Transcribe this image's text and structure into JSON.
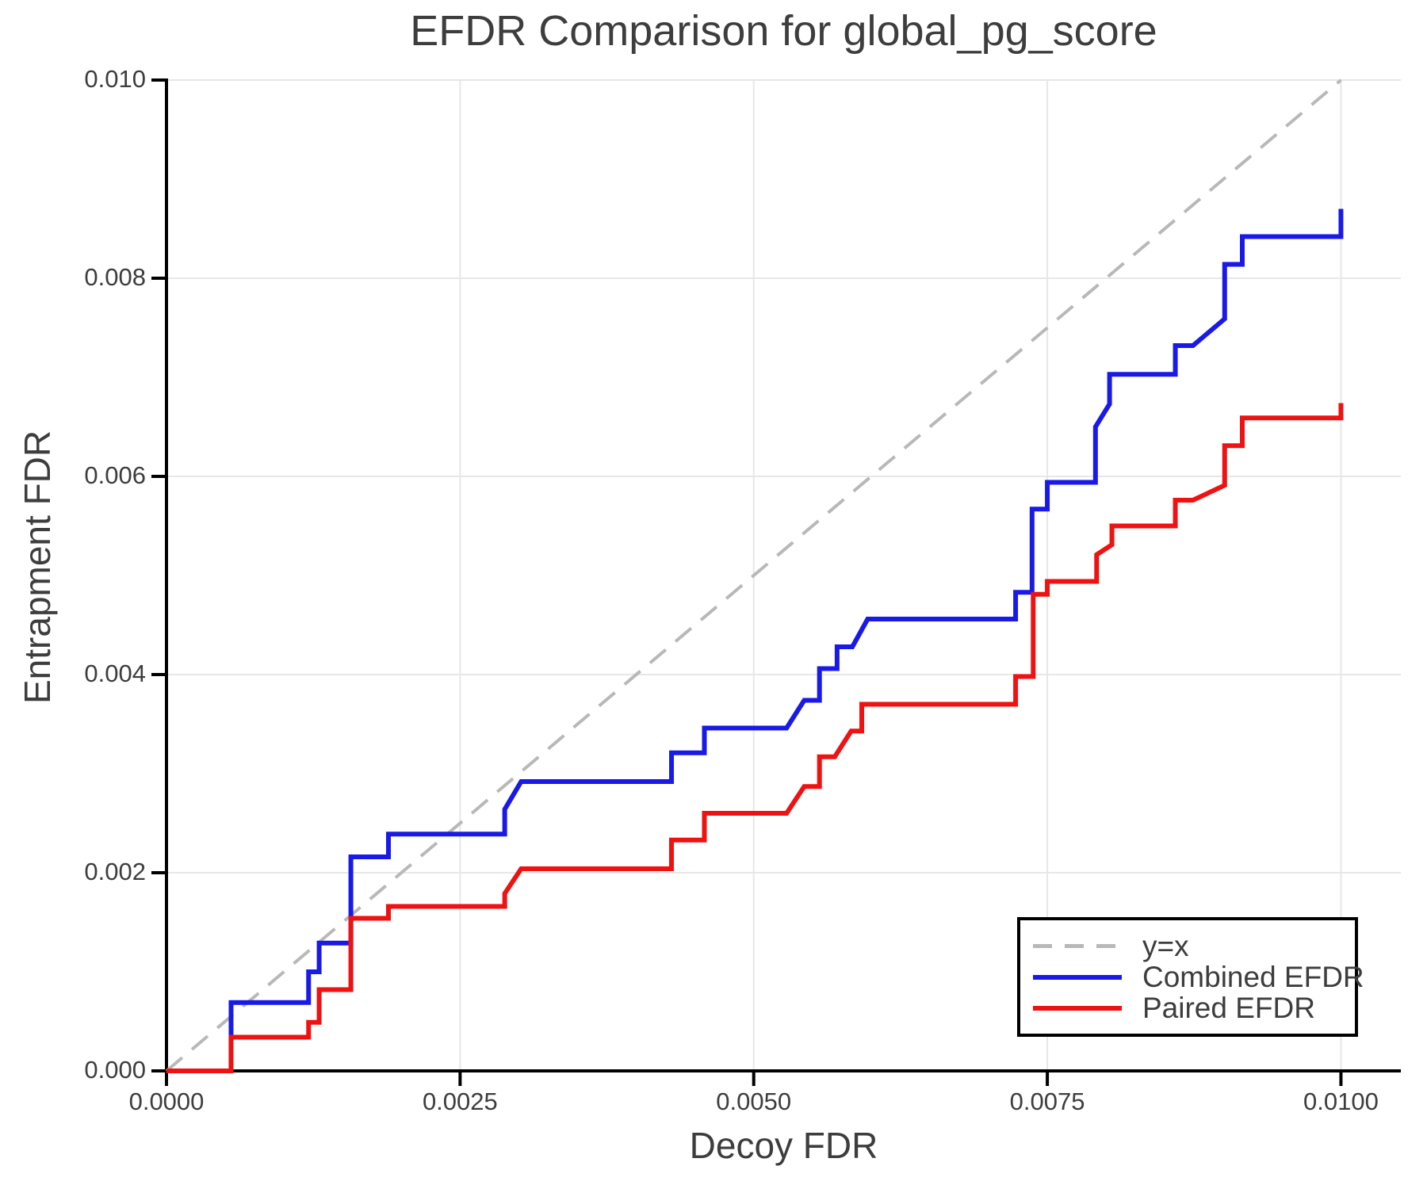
{
  "chart_data": {
    "type": "line",
    "subtype": "step-curves",
    "title": "EFDR Comparison for global_pg_score",
    "xlabel": "Decoy FDR",
    "ylabel": "Entrapment FDR",
    "xlim": [
      0.0,
      0.01051
    ],
    "ylim": [
      0.0,
      0.01
    ],
    "grid": true,
    "legend_position": "lower right",
    "x_ticks": {
      "values": [
        0.0,
        0.0025,
        0.005,
        0.0075,
        0.01
      ],
      "labels": [
        "0.0000",
        "0.0025",
        "0.0050",
        "0.0075",
        "0.0100"
      ]
    },
    "y_ticks": {
      "values": [
        0.0,
        0.002,
        0.004,
        0.006,
        0.008,
        0.01
      ],
      "labels": [
        "0.000",
        "0.002",
        "0.004",
        "0.006",
        "0.008",
        "0.010"
      ]
    },
    "colors": {
      "reference": "#b8b8b8",
      "combined": "#1a1ae8",
      "paired": "#ef1212",
      "grid": "#e7e7e7",
      "spine": "#000000",
      "text": "#3d3d3d"
    },
    "legend": [
      {
        "label": "y=x",
        "style": "dashed",
        "color": "#b8b8b8"
      },
      {
        "label": "Combined EFDR",
        "style": "solid",
        "color": "#1a1ae8"
      },
      {
        "label": "Paired EFDR",
        "style": "solid",
        "color": "#ef1212"
      }
    ],
    "reference_line": {
      "name": "y=x",
      "points": [
        [
          0.0,
          0.0
        ],
        [
          0.01,
          0.01
        ]
      ]
    },
    "series": [
      {
        "name": "Combined EFDR",
        "color": "#1a1ae8",
        "points": [
          [
            0.0,
            0.0
          ],
          [
            0.00055,
            0.0
          ],
          [
            0.00055,
            0.00069
          ],
          [
            0.00121,
            0.00069
          ],
          [
            0.00121,
            0.001
          ],
          [
            0.0013,
            0.001
          ],
          [
            0.0013,
            0.00129
          ],
          [
            0.00157,
            0.00129
          ],
          [
            0.00157,
            0.00216
          ],
          [
            0.00189,
            0.00216
          ],
          [
            0.00189,
            0.00239
          ],
          [
            0.00288,
            0.00239
          ],
          [
            0.00288,
            0.00264
          ],
          [
            0.00302,
            0.00292
          ],
          [
            0.0043,
            0.00292
          ],
          [
            0.0043,
            0.00321
          ],
          [
            0.00458,
            0.00321
          ],
          [
            0.00458,
            0.00346
          ],
          [
            0.00528,
            0.00346
          ],
          [
            0.00543,
            0.00374
          ],
          [
            0.00556,
            0.00374
          ],
          [
            0.00556,
            0.00406
          ],
          [
            0.00571,
            0.00406
          ],
          [
            0.00571,
            0.00428
          ],
          [
            0.00584,
            0.00428
          ],
          [
            0.00597,
            0.00456
          ],
          [
            0.00723,
            0.00456
          ],
          [
            0.00723,
            0.00483
          ],
          [
            0.00737,
            0.00483
          ],
          [
            0.00737,
            0.00567
          ],
          [
            0.0075,
            0.00567
          ],
          [
            0.0075,
            0.00594
          ],
          [
            0.00791,
            0.00594
          ],
          [
            0.00791,
            0.0065
          ],
          [
            0.00803,
            0.00673
          ],
          [
            0.00803,
            0.00703
          ],
          [
            0.00859,
            0.00703
          ],
          [
            0.00859,
            0.00732
          ],
          [
            0.00874,
            0.00732
          ],
          [
            0.00886,
            0.00744
          ],
          [
            0.00901,
            0.00759
          ],
          [
            0.00901,
            0.00814
          ],
          [
            0.00916,
            0.00814
          ],
          [
            0.00916,
            0.00842
          ],
          [
            0.01,
            0.00842
          ],
          [
            0.01,
            0.0087
          ]
        ]
      },
      {
        "name": "Paired EFDR",
        "color": "#ef1212",
        "points": [
          [
            0.0,
            0.0
          ],
          [
            0.00055,
            0.0
          ],
          [
            0.00055,
            0.00034
          ],
          [
            0.00121,
            0.00034
          ],
          [
            0.00121,
            0.00049
          ],
          [
            0.0013,
            0.00049
          ],
          [
            0.0013,
            0.00082
          ],
          [
            0.00157,
            0.00082
          ],
          [
            0.00157,
            0.00154
          ],
          [
            0.00189,
            0.00154
          ],
          [
            0.00189,
            0.00166
          ],
          [
            0.00288,
            0.00166
          ],
          [
            0.00288,
            0.00179
          ],
          [
            0.00302,
            0.00204
          ],
          [
            0.0043,
            0.00204
          ],
          [
            0.0043,
            0.00233
          ],
          [
            0.00458,
            0.00233
          ],
          [
            0.00458,
            0.0026
          ],
          [
            0.00528,
            0.0026
          ],
          [
            0.00543,
            0.00287
          ],
          [
            0.00556,
            0.00287
          ],
          [
            0.00556,
            0.00317
          ],
          [
            0.00569,
            0.00317
          ],
          [
            0.00583,
            0.00343
          ],
          [
            0.00592,
            0.00343
          ],
          [
            0.00592,
            0.0037
          ],
          [
            0.00723,
            0.0037
          ],
          [
            0.00723,
            0.00398
          ],
          [
            0.00738,
            0.00398
          ],
          [
            0.00738,
            0.00481
          ],
          [
            0.0075,
            0.00481
          ],
          [
            0.0075,
            0.00494
          ],
          [
            0.00792,
            0.00494
          ],
          [
            0.00792,
            0.00521
          ],
          [
            0.00805,
            0.00531
          ],
          [
            0.00805,
            0.0055
          ],
          [
            0.00859,
            0.0055
          ],
          [
            0.00859,
            0.00576
          ],
          [
            0.00874,
            0.00576
          ],
          [
            0.00901,
            0.00591
          ],
          [
            0.00901,
            0.00631
          ],
          [
            0.00916,
            0.00631
          ],
          [
            0.00916,
            0.00659
          ],
          [
            0.01,
            0.00659
          ],
          [
            0.01,
            0.00674
          ]
        ]
      }
    ]
  }
}
